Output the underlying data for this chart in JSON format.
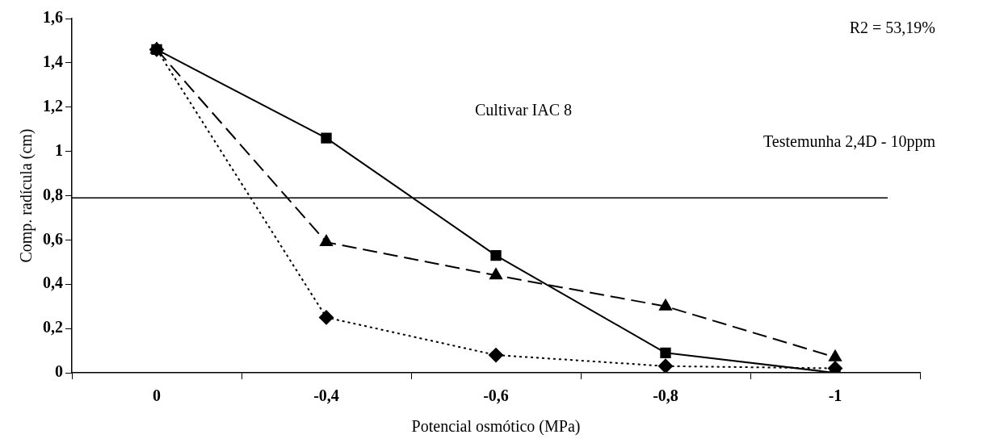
{
  "chart_data": {
    "type": "line",
    "xlabel": "Potencial osmótico (MPa)",
    "ylabel": "Comp. radícula (cm)",
    "categories": [
      "0",
      "-0,4",
      "-0,6",
      "-0,8",
      "-1"
    ],
    "series": [
      {
        "color": "#000000",
        "marker": "square",
        "line_style": "solid",
        "values": [
          1.46,
          1.06,
          0.53,
          0.09,
          0
        ]
      },
      {
        "color": "#000000",
        "marker": "triangle",
        "line_style": "dashed",
        "values": [
          1.46,
          0.59,
          0.44,
          0.3,
          0.07
        ]
      },
      {
        "color": "#000000",
        "marker": "diamond",
        "line_style": "dotted",
        "values": [
          1.46,
          0.25,
          0.08,
          0.03,
          0.02
        ]
      }
    ],
    "ylim": [
      0,
      1.6
    ],
    "yticks": [
      {
        "value": 0,
        "label": "0"
      },
      {
        "value": 0.2,
        "label": "0,2"
      },
      {
        "value": 0.4,
        "label": "0,4"
      },
      {
        "value": 0.6,
        "label": "0,6"
      },
      {
        "value": 0.8,
        "label": "0,8"
      },
      {
        "value": 1,
        "label": "1"
      },
      {
        "value": 1.2,
        "label": "1,2"
      },
      {
        "value": 1.4,
        "label": "1,4"
      },
      {
        "value": 1.6,
        "label": "1,6"
      }
    ],
    "ref_lines": [
      {
        "axis": "y",
        "value": 0.79,
        "label": "Testemunha 2,4D - 10ppm",
        "color": "#000000",
        "line_style": "solid"
      }
    ],
    "annotations": [
      "R2 = 53,19%",
      "Cultivar IAC 8"
    ],
    "grid": false,
    "legend": false
  }
}
